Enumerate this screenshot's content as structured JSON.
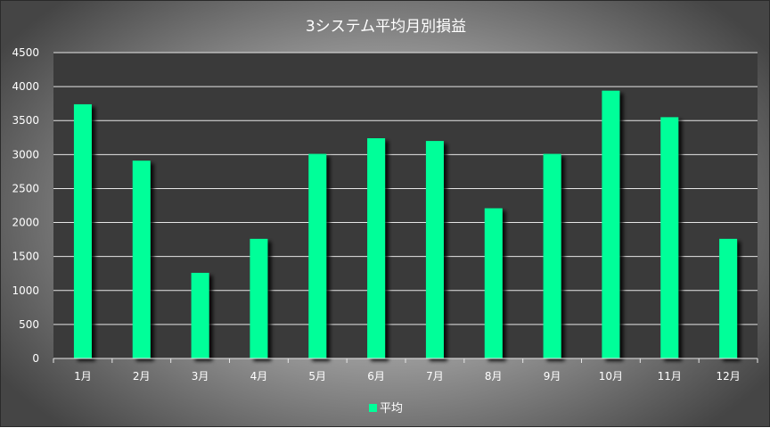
{
  "chart_data": {
    "type": "bar",
    "title": "3システム平均月別損益",
    "categories": [
      "1月",
      "2月",
      "3月",
      "4月",
      "5月",
      "6月",
      "7月",
      "8月",
      "9月",
      "10月",
      "11月",
      "12月"
    ],
    "series": [
      {
        "name": "平均",
        "values": [
          3740,
          2910,
          1260,
          1760,
          3010,
          3240,
          3200,
          2210,
          3010,
          3940,
          3550,
          1760
        ]
      }
    ],
    "ylim": [
      0,
      4500
    ],
    "yticks": [
      0,
      500,
      1000,
      1500,
      2000,
      2500,
      3000,
      3500,
      4000,
      4500
    ],
    "grid": true,
    "legend": "bottom",
    "colors": {
      "bar": "#00ff99",
      "plot_bg": "#3a3a3a",
      "grid": "#e6e6e6",
      "text": "#ffffff"
    }
  }
}
